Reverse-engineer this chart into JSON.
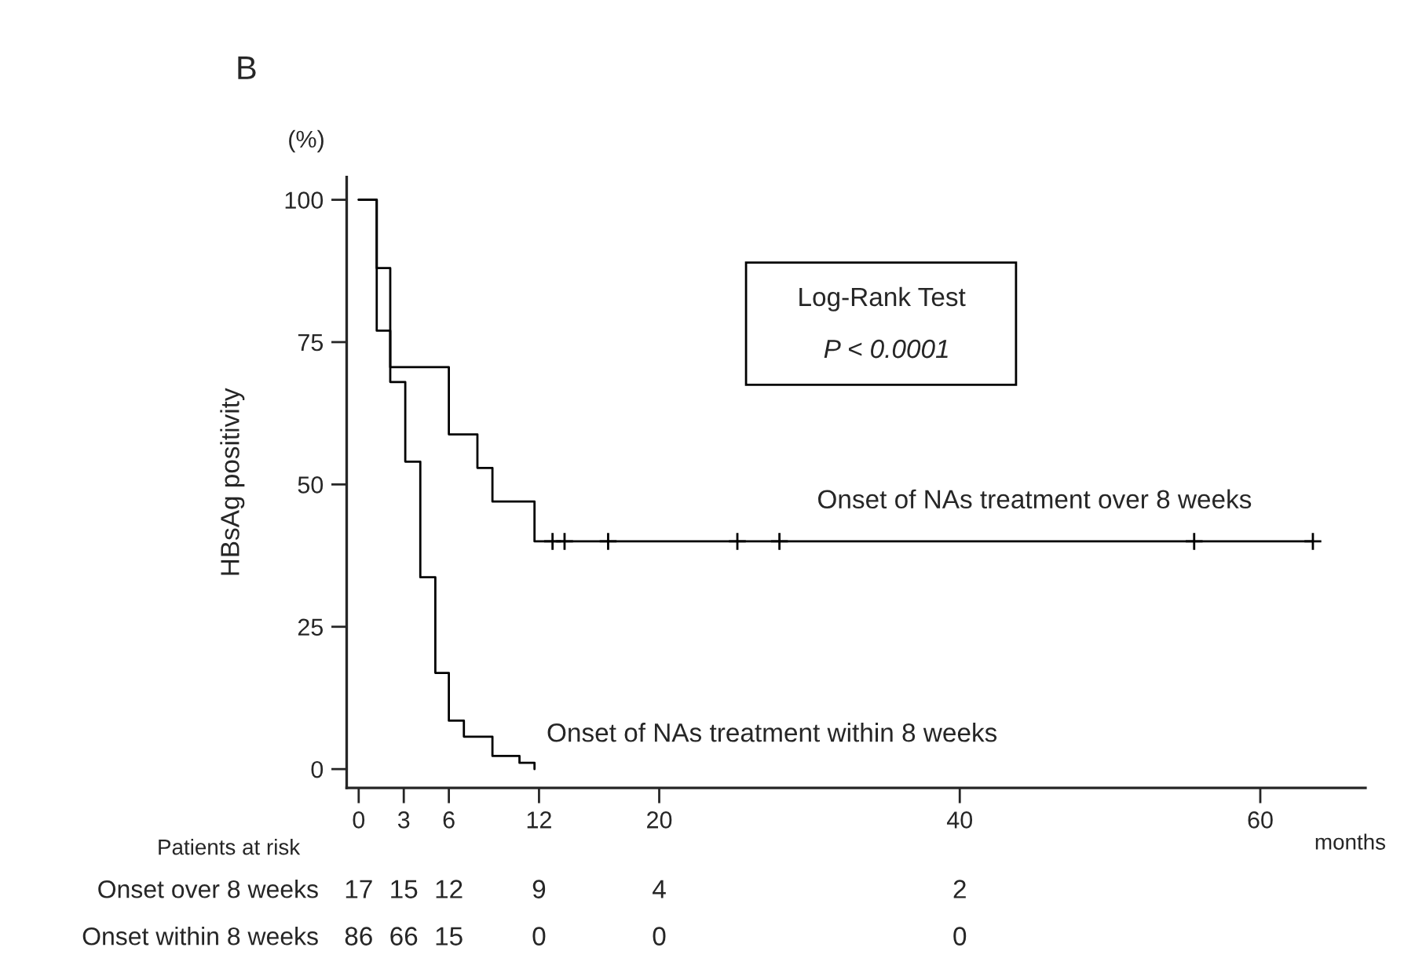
{
  "chart_data": {
    "type": "step",
    "title": "B",
    "xlabel": "months",
    "ylabel": "HBsAg positivity",
    "series": [
      {
        "name": "Onset of NAs treatment over 8 weeks",
        "color": "#000000",
        "x": [
          0,
          1.2,
          2.1,
          6.0,
          7.9,
          8.9,
          11.7,
          63.5
        ],
        "values": [
          100,
          88,
          70.6,
          58.8,
          52.9,
          47,
          40,
          40
        ]
      },
      {
        "name": "Onset of NAs treatment within 8 weeks",
        "color": "#000000",
        "x": [
          0,
          1.2,
          2.1,
          3.1,
          4.1,
          5.1,
          6.0,
          7.0,
          8.9,
          10.7,
          11.7
        ],
        "values": [
          100,
          77,
          68,
          54,
          33.7,
          16.9,
          8.5,
          5.7,
          2.3,
          1.1,
          0
        ]
      },
      {
        "type": "scatter",
        "marker": "cross",
        "color": "#000000",
        "x": [
          12.9,
          13.7,
          16.6,
          25.2,
          28.0,
          55.6,
          63.5
        ],
        "values": [
          40,
          40,
          40,
          40,
          40,
          40,
          40
        ]
      }
    ],
    "xlim": [
      -0.8,
      67
    ],
    "xticks": [
      0,
      3,
      6,
      12,
      20,
      40,
      60
    ],
    "ylim": [
      -3.3,
      104
    ],
    "yticks": [
      0,
      25,
      50,
      75,
      100
    ],
    "grid": false,
    "legend": false,
    "annotations": [
      "(%)",
      "Log-Rank Test",
      "P < 0.0001",
      "Patients at risk",
      "Onset over 8 weeks",
      "Onset within 8 weeks",
      "17",
      "15",
      "12",
      "9",
      "4",
      "2",
      "86",
      "66",
      "15",
      "0",
      "0",
      "0"
    ]
  }
}
